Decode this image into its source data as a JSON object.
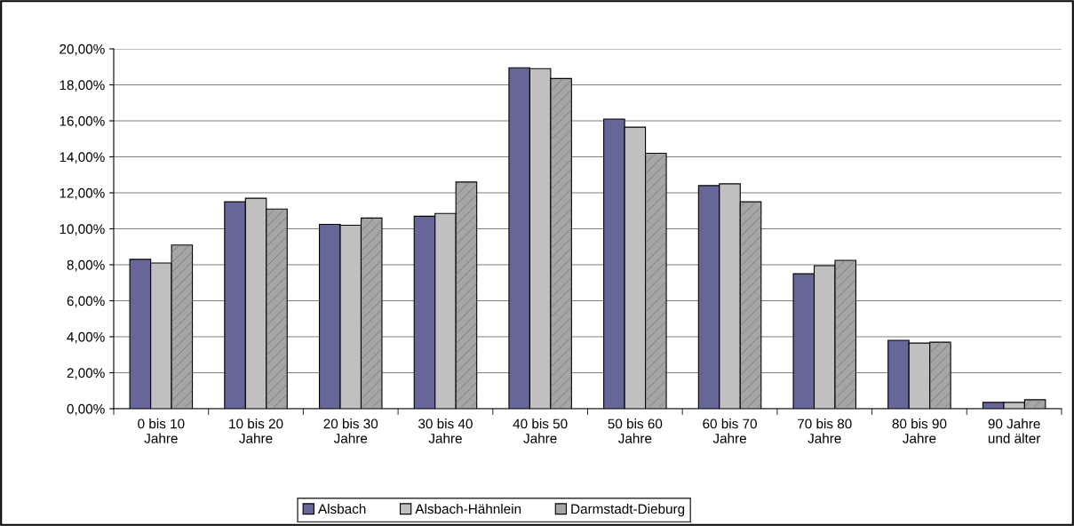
{
  "chart_data": {
    "type": "bar",
    "categories": [
      "0 bis 10\nJahre",
      "10 bis 20\nJahre",
      "20 bis 30\nJahre",
      "30 bis 40\nJahre",
      "40 bis 50\nJahre",
      "50 bis 60\nJahre",
      "60 bis 70\nJahre",
      "70 bis 80\nJahre",
      "80 bis 90\nJahre",
      "90 Jahre\nund älter"
    ],
    "series": [
      {
        "name": "Alsbach",
        "color": "#666699",
        "values": [
          8.3,
          11.5,
          10.25,
          10.7,
          18.95,
          16.1,
          12.4,
          7.5,
          3.8,
          0.35
        ]
      },
      {
        "name": "Alsbach-Hähnlein",
        "color": "#c0c0c0",
        "values": [
          8.1,
          11.7,
          10.2,
          10.85,
          18.9,
          15.65,
          12.5,
          7.95,
          3.65,
          0.35
        ]
      },
      {
        "name": "Darmstadt-Dieburg",
        "color": "#a6a6a6",
        "values": [
          9.1,
          11.1,
          10.6,
          12.6,
          18.35,
          14.2,
          11.5,
          8.25,
          3.7,
          0.5
        ]
      }
    ],
    "ylim": [
      0,
      20
    ],
    "yticks": [
      {
        "value": 0,
        "label": "0,00%"
      },
      {
        "value": 2,
        "label": "2,00%"
      },
      {
        "value": 4,
        "label": "4,00%"
      },
      {
        "value": 6,
        "label": "6,00%"
      },
      {
        "value": 8,
        "label": "8,00%"
      },
      {
        "value": 10,
        "label": "10,00%"
      },
      {
        "value": 12,
        "label": "12,00%"
      },
      {
        "value": 14,
        "label": "14,00%"
      },
      {
        "value": 16,
        "label": "16,00%"
      },
      {
        "value": 18,
        "label": "18,00%"
      },
      {
        "value": 20,
        "label": "20,00%"
      }
    ],
    "grid": "y",
    "legend": "bottom"
  }
}
